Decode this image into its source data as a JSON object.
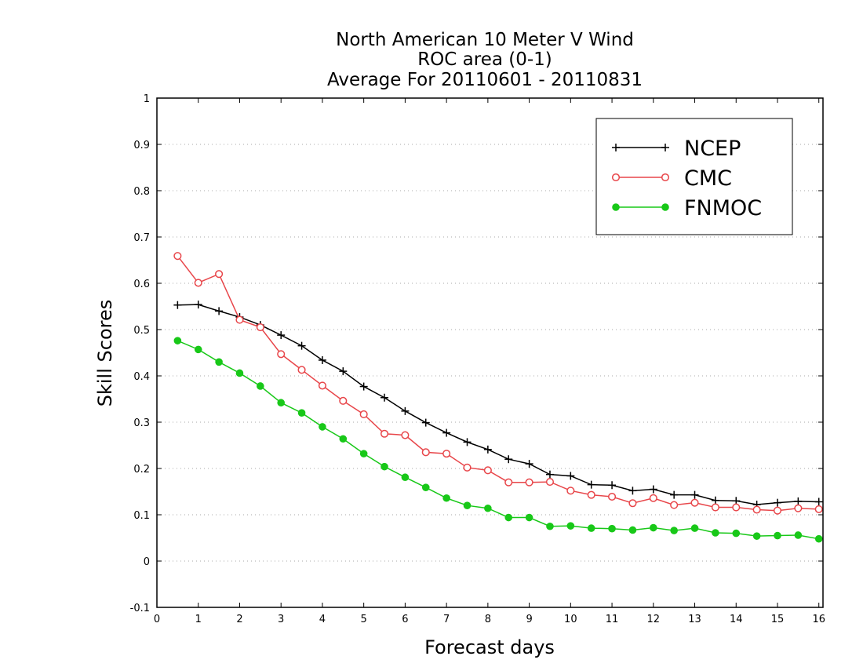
{
  "chart_data": {
    "type": "line",
    "title_lines": [
      "North American 10 Meter V Wind",
      "ROC area (0-1)",
      "Average For 20110601 - 20110831"
    ],
    "xlabel": "Forecast days",
    "ylabel": "Skill Scores",
    "xlim": [
      0,
      16.1
    ],
    "ylim": [
      -0.1,
      1
    ],
    "x_ticks": [
      0,
      1,
      2,
      3,
      4,
      5,
      6,
      7,
      8,
      9,
      10,
      11,
      12,
      13,
      14,
      15,
      16
    ],
    "y_ticks": [
      -0.1,
      0,
      0.1,
      0.2,
      0.3,
      0.4,
      0.5,
      0.6,
      0.7,
      0.8,
      0.9,
      1
    ],
    "y_tick_labels": [
      "-0.1",
      "0",
      "0.1",
      "0.2",
      "0.3",
      "0.4",
      "0.5",
      "0.6",
      "0.7",
      "0.8",
      "0.9",
      "1"
    ],
    "grid": "horizontal-dotted",
    "legend_position": "top-right",
    "x": [
      0.5,
      1,
      1.5,
      2,
      2.5,
      3,
      3.5,
      4,
      4.5,
      5,
      5.5,
      6,
      6.5,
      7,
      7.5,
      8,
      8.5,
      9,
      9.5,
      10,
      10.5,
      11,
      11.5,
      12,
      12.5,
      13,
      13.5,
      14,
      14.5,
      15,
      15.5,
      16
    ],
    "series": [
      {
        "name": "NCEP",
        "color": "#000000",
        "marker": "plus",
        "values": [
          0.553,
          0.554,
          0.54,
          0.527,
          0.51,
          0.488,
          0.465,
          0.434,
          0.41,
          0.377,
          0.353,
          0.324,
          0.299,
          0.277,
          0.257,
          0.241,
          0.22,
          0.21,
          0.187,
          0.184,
          0.165,
          0.164,
          0.152,
          0.155,
          0.143,
          0.143,
          0.131,
          0.13,
          0.122,
          0.126,
          0.129,
          0.128
        ]
      },
      {
        "name": "CMC",
        "color": "#e8464a",
        "marker": "open-circle",
        "values": [
          0.659,
          0.601,
          0.62,
          0.521,
          0.505,
          0.447,
          0.413,
          0.379,
          0.346,
          0.317,
          0.275,
          0.272,
          0.235,
          0.232,
          0.202,
          0.196,
          0.17,
          0.17,
          0.171,
          0.152,
          0.143,
          0.139,
          0.125,
          0.136,
          0.121,
          0.126,
          0.116,
          0.116,
          0.111,
          0.109,
          0.114,
          0.112
        ]
      },
      {
        "name": "FNMOC",
        "color": "#18c818",
        "marker": "filled-circle",
        "values": [
          0.476,
          0.457,
          0.43,
          0.406,
          0.378,
          0.342,
          0.32,
          0.29,
          0.264,
          0.232,
          0.204,
          0.181,
          0.159,
          0.136,
          0.12,
          0.114,
          0.094,
          0.094,
          0.075,
          0.076,
          0.071,
          0.07,
          0.067,
          0.072,
          0.066,
          0.071,
          0.061,
          0.06,
          0.054,
          0.055,
          0.056,
          0.048
        ]
      }
    ]
  }
}
